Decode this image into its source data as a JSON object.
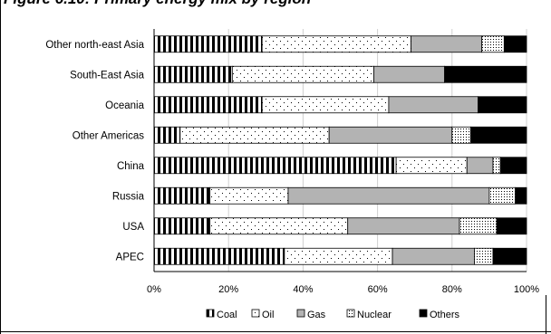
{
  "header": {
    "title": "Figure 6.10: Primary energy mix by region"
  },
  "chart_data": {
    "type": "bar",
    "orientation": "horizontal",
    "stacked": true,
    "categories": [
      "Other north-east Asia",
      "South-East Asia",
      "Oceania",
      "Other Americas",
      "China",
      "Russia",
      "USA",
      "APEC"
    ],
    "series": [
      {
        "name": "Coal",
        "values": [
          29,
          21,
          29,
          7,
          65,
          15,
          15,
          35
        ]
      },
      {
        "name": "Oil",
        "values": [
          40,
          38,
          34,
          40,
          19,
          21,
          37,
          29
        ]
      },
      {
        "name": "Gas",
        "values": [
          19,
          19,
          24,
          33,
          7,
          54,
          30,
          22
        ]
      },
      {
        "name": "Nuclear",
        "values": [
          6,
          0,
          0,
          5,
          2,
          7,
          10,
          5
        ]
      },
      {
        "name": "Others",
        "values": [
          6,
          22,
          13,
          15,
          7,
          3,
          8,
          9
        ]
      }
    ],
    "xlim": [
      0,
      100
    ],
    "xticks": [
      "0%",
      "20%",
      "40%",
      "60%",
      "80%",
      "100%"
    ],
    "colors": {
      "Coal": "#000000",
      "Oil": "#ffffff",
      "Gas": "#b3b3b3",
      "Nuclear": "#ffffff",
      "Others": "#000000"
    },
    "patterns": {
      "Coal": "vertical-stripes",
      "Oil": "sparse-dots",
      "Gas": "solid-grey",
      "Nuclear": "dots-and-diagonals",
      "Others": "solid-black"
    },
    "grid": true,
    "legend": "bottom"
  }
}
